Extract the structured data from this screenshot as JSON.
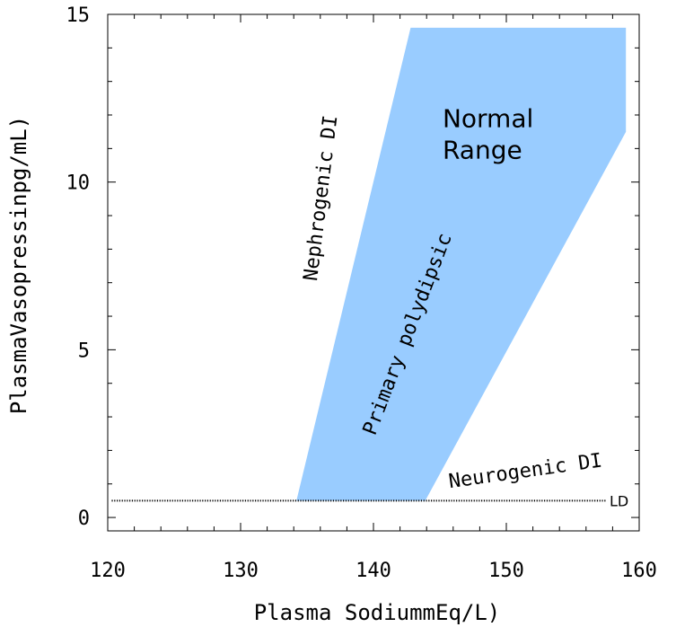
{
  "chart_data": {
    "type": "area",
    "title": "",
    "xlabel": "Plasma SodiummEq/L)",
    "ylabel": "PlasmaVasopressinpg/mL)",
    "xlim": [
      120,
      160
    ],
    "ylim": [
      -0.4,
      15
    ],
    "x_ticks": [
      "120",
      "130",
      "140",
      "150",
      "160"
    ],
    "y_ticks": [
      "0",
      "5",
      "10",
      "15"
    ],
    "x_tick_values": [
      120,
      130,
      140,
      150,
      160
    ],
    "y_tick_values": [
      0,
      5,
      10,
      15
    ],
    "grid": false,
    "series": [
      {
        "name": "Normal Range",
        "color": "#99ccff",
        "polygon": [
          {
            "x": 134.2,
            "y": 0.5
          },
          {
            "x": 142.8,
            "y": 14.6
          },
          {
            "x": 159.0,
            "y": 14.6
          },
          {
            "x": 159.0,
            "y": 11.5
          },
          {
            "x": 143.9,
            "y": 0.5
          }
        ]
      }
    ],
    "detection_limit": {
      "label": "LD",
      "y": 0.5,
      "x_start": 120.3,
      "x_end": 157.5
    },
    "annotations": [
      {
        "key": "normal",
        "text": "Normal\nRange",
        "x": 145.2,
        "y": 11.4
      },
      {
        "key": "nephrogenic",
        "text": "Nephrogenic DI",
        "x": 136.5,
        "y": 9.5,
        "rotation": -83
      },
      {
        "key": "primary",
        "text": "Primary polydipsic",
        "x": 143.0,
        "y": 5.4,
        "rotation": -69
      },
      {
        "key": "neurogenic",
        "text": "Neurogenic DI",
        "x": 151.5,
        "y": 1.2,
        "rotation": -8
      }
    ]
  }
}
